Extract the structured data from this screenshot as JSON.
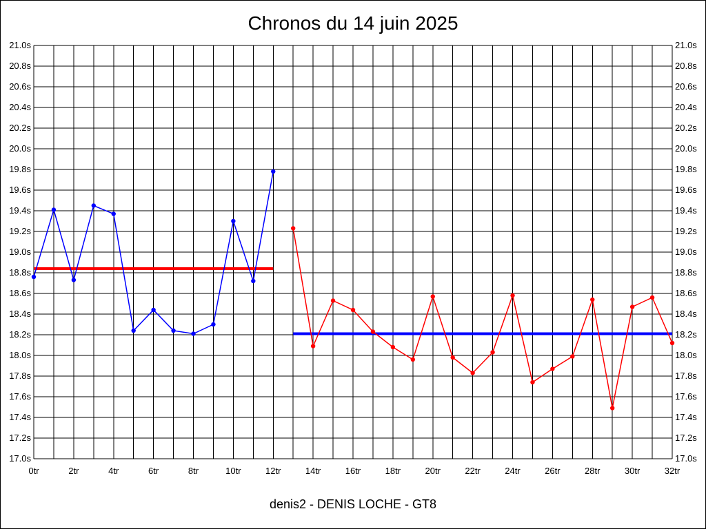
{
  "chart_data": {
    "type": "line",
    "title": "Chronos du 14 juin 2025",
    "subtitle": "denis2 - DENIS LOCHE - GT8",
    "xlabel": "",
    "ylabel": "",
    "xlim": [
      0,
      32
    ],
    "ylim": [
      17.0,
      21.0
    ],
    "x_tick_step": 2,
    "x_tick_suffix": "tr",
    "y_tick_step": 0.2,
    "y_tick_suffix": "s",
    "y_axis_both_sides": true,
    "grid": true,
    "legend": "none",
    "series": [
      {
        "color": "#0000ff",
        "markers": true,
        "points": [
          [
            0,
            18.76
          ],
          [
            1,
            19.41
          ],
          [
            2,
            18.73
          ],
          [
            3,
            19.45
          ],
          [
            4,
            19.37
          ],
          [
            5,
            18.24
          ],
          [
            6,
            18.44
          ],
          [
            7,
            18.24
          ],
          [
            8,
            18.21
          ],
          [
            9,
            18.3
          ],
          [
            10,
            19.3
          ],
          [
            11,
            18.72
          ],
          [
            12,
            19.78
          ]
        ]
      },
      {
        "color": "#ff0000",
        "markers": true,
        "points": [
          [
            13,
            19.23
          ],
          [
            14,
            18.09
          ],
          [
            15,
            18.53
          ],
          [
            16,
            18.44
          ],
          [
            17,
            18.23
          ],
          [
            18,
            18.08
          ],
          [
            19,
            17.96
          ],
          [
            20,
            18.57
          ],
          [
            21,
            17.98
          ],
          [
            22,
            17.83
          ],
          [
            23,
            18.03
          ],
          [
            24,
            18.58
          ],
          [
            25,
            17.74
          ],
          [
            26,
            17.87
          ],
          [
            27,
            17.99
          ],
          [
            28,
            18.54
          ],
          [
            29,
            17.49
          ],
          [
            30,
            18.47
          ],
          [
            31,
            18.56
          ],
          [
            32,
            18.12
          ]
        ]
      }
    ],
    "reference_lines": [
      {
        "color": "#ff0000",
        "x_start": 0,
        "x_end": 12,
        "y": 18.84
      },
      {
        "color": "#0000ff",
        "x_start": 13,
        "x_end": 32,
        "y": 18.21
      }
    ]
  }
}
